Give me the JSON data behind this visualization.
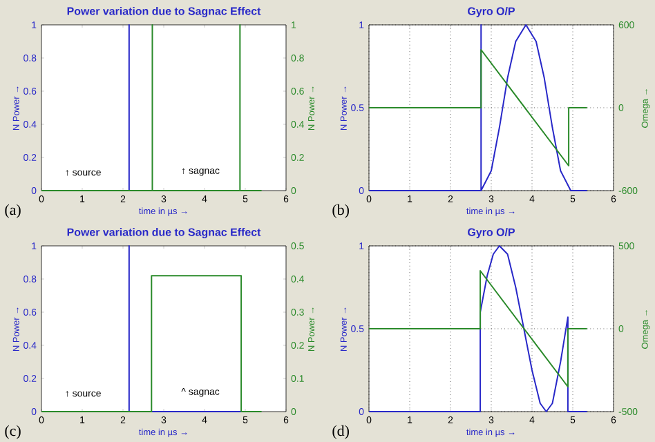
{
  "chart_data": [
    {
      "type": "line",
      "title": "Power variation due to Sagnac Effect",
      "xlabel": "time in µs →",
      "ylabel": "N Power →",
      "y2label": "N Power →",
      "xlim": [
        0,
        6
      ],
      "xticks": [
        0,
        1,
        2,
        3,
        4,
        5,
        6
      ],
      "ylim": [
        0,
        1
      ],
      "yticks": [
        0,
        0.2,
        0.4,
        0.6,
        0.8,
        1
      ],
      "y2lim": [
        0,
        1
      ],
      "y2ticks": [
        0,
        0.2,
        0.4,
        0.6,
        0.8,
        1
      ],
      "grid": false,
      "series": [
        {
          "color": "#2828c8",
          "x": [
            0,
            2.15,
            2.15,
            2.15,
            5.35
          ],
          "values": [
            0,
            0,
            1,
            0,
            0
          ]
        },
        {
          "color": "#2a8a2a",
          "axis": "y2",
          "x": [
            0,
            2.72,
            2.72,
            2.72,
            4.87,
            4.87,
            4.87,
            5.4
          ],
          "values": [
            0,
            0,
            1,
            0,
            0,
            1,
            0,
            0
          ]
        }
      ],
      "annotations": [
        "↑ source",
        "↑ sagnac",
        "(a)"
      ]
    },
    {
      "type": "line",
      "title": "Gyro O/P",
      "xlabel": "time in µs →",
      "ylabel": "N Power →",
      "y2label": "Omega →",
      "xlim": [
        0,
        6
      ],
      "xticks": [
        0,
        1,
        2,
        3,
        4,
        5,
        6
      ],
      "ylim": [
        0,
        1
      ],
      "yticks": [
        0,
        0.5,
        1
      ],
      "y2lim": [
        -600,
        600
      ],
      "y2ticks": [
        -600,
        0,
        600
      ],
      "grid": true,
      "series": [
        {
          "color": "#2828c8",
          "x": [
            0,
            2.75,
            2.75,
            2.75,
            3.0,
            3.2,
            3.4,
            3.6,
            3.85,
            4.1,
            4.3,
            4.5,
            4.7,
            4.95,
            5.35
          ],
          "values": [
            0,
            0,
            1,
            0,
            0.12,
            0.38,
            0.68,
            0.9,
            1,
            0.9,
            0.68,
            0.38,
            0.12,
            0,
            0
          ]
        },
        {
          "color": "#2a8a2a",
          "axis": "y2",
          "x": [
            0,
            2.75,
            2.75,
            4.9,
            4.9,
            5.35
          ],
          "values": [
            0,
            0,
            420,
            -420,
            0,
            0
          ]
        }
      ],
      "annotations": [
        "(b)"
      ]
    },
    {
      "type": "line",
      "title": "Power variation due to Sagnac Effect",
      "xlabel": "time in µs →",
      "ylabel": "N Power →",
      "y2label": "N Power →",
      "xlim": [
        0,
        6
      ],
      "xticks": [
        0,
        1,
        2,
        3,
        4,
        5,
        6
      ],
      "ylim": [
        0,
        1
      ],
      "yticks": [
        0,
        0.2,
        0.4,
        0.6,
        0.8,
        1
      ],
      "y2lim": [
        0,
        0.5
      ],
      "y2ticks": [
        0,
        0.1,
        0.2,
        0.3,
        0.4,
        0.5
      ],
      "grid": false,
      "series": [
        {
          "color": "#2828c8",
          "x": [
            0,
            2.15,
            2.15,
            2.15,
            5.35
          ],
          "values": [
            0,
            0,
            1,
            0,
            0
          ]
        },
        {
          "color": "#2a8a2a",
          "axis": "y2",
          "x": [
            0,
            2.7,
            2.7,
            4.9,
            4.9,
            5.4
          ],
          "values": [
            0,
            0,
            0.41,
            0.41,
            0,
            0
          ]
        }
      ],
      "annotations": [
        "↑ source",
        "^ sagnac",
        "(c)"
      ]
    },
    {
      "type": "line",
      "title": "Gyro O/P",
      "xlabel": "time in µs →",
      "ylabel": "N Power →",
      "y2label": "Omega →",
      "xlim": [
        0,
        6
      ],
      "xticks": [
        0,
        1,
        2,
        3,
        4,
        5,
        6
      ],
      "ylim": [
        0,
        1
      ],
      "yticks": [
        0,
        0.5,
        1
      ],
      "y2lim": [
        -500,
        500
      ],
      "y2ticks": [
        -500,
        0,
        500
      ],
      "grid": true,
      "series": [
        {
          "color": "#2828c8",
          "x": [
            0,
            2.73,
            2.73,
            2.9,
            3.05,
            3.2,
            3.4,
            3.6,
            3.8,
            4.0,
            4.2,
            4.35,
            4.5,
            4.7,
            4.88,
            4.88,
            5.35
          ],
          "values": [
            0,
            0,
            0.6,
            0.82,
            0.95,
            1,
            0.95,
            0.75,
            0.5,
            0.25,
            0.05,
            0,
            0.05,
            0.3,
            0.57,
            0,
            0
          ]
        },
        {
          "color": "#2a8a2a",
          "axis": "y2",
          "x": [
            0,
            2.73,
            2.73,
            4.88,
            4.88,
            5.35
          ],
          "values": [
            0,
            0,
            350,
            -350,
            0,
            0
          ]
        }
      ],
      "annotations": [
        "(d)"
      ]
    }
  ]
}
